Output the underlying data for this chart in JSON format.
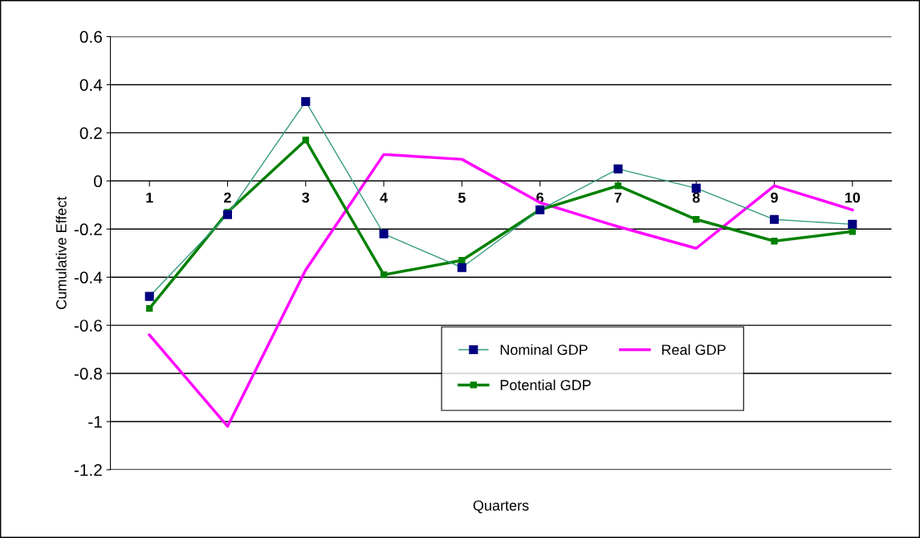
{
  "chart_data": {
    "type": "line",
    "xlabel": "Quarters",
    "ylabel": "Cumulative Effect",
    "categories": [
      "1",
      "2",
      "3",
      "4",
      "5",
      "6",
      "7",
      "8",
      "9",
      "10"
    ],
    "series": [
      {
        "name": "Nominal GDP",
        "color": "#000080",
        "marker": "square",
        "values": [
          -0.48,
          -0.14,
          0.33,
          -0.22,
          -0.36,
          -0.12,
          0.05,
          -0.03,
          -0.16,
          -0.18
        ]
      },
      {
        "name": "Real GDP",
        "color": "#ff00ff",
        "marker": "none",
        "values": [
          -0.64,
          -1.02,
          -0.37,
          0.11,
          0.09,
          -0.09,
          -0.19,
          -0.28,
          -0.02,
          -0.12
        ]
      },
      {
        "name": "Potential GDP",
        "color": "#008000",
        "marker": "square",
        "values": [
          -0.53,
          -0.13,
          0.17,
          -0.39,
          -0.33,
          -0.12,
          -0.02,
          -0.16,
          -0.25,
          -0.21
        ]
      }
    ],
    "ylim": [
      -1.2,
      0.6
    ],
    "yticks": [
      -1.2,
      -1,
      -0.8,
      -0.6,
      -0.4,
      -0.2,
      0,
      0.2,
      0.4,
      0.6
    ],
    "grid": "y",
    "legend": "bottom right"
  }
}
